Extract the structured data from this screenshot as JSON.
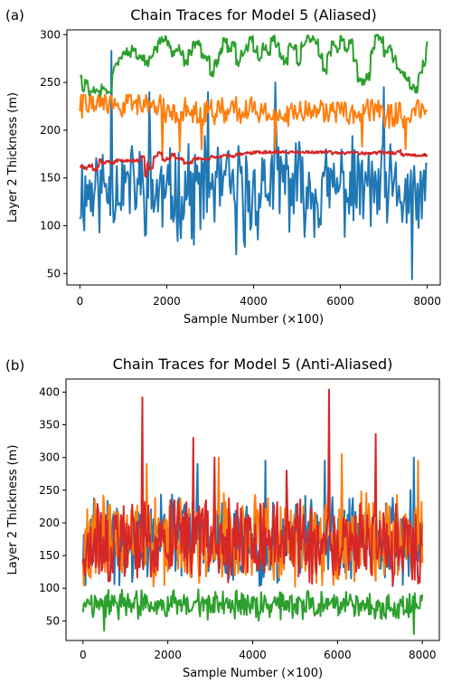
{
  "chart_data": [
    {
      "type": "line",
      "panel_label": "(a)",
      "title": "Chain Traces for Model 5 (Aliased)",
      "xlabel": "Sample Number (×100)",
      "ylabel": "Layer 2 Thickness (m)",
      "xlim": [
        -300,
        8300
      ],
      "ylim": [
        38,
        305
      ],
      "xticks": [
        0,
        2000,
        4000,
        6000,
        8000
      ],
      "xtick_labels": [
        "0",
        "2000",
        "4000",
        "6000",
        "8000"
      ],
      "yticks": [
        50,
        100,
        150,
        200,
        250,
        300
      ],
      "ytick_labels": [
        "50",
        "100",
        "150",
        "200",
        "250",
        "300"
      ],
      "grid": false,
      "series": [
        {
          "color": "#1f77b4",
          "kind": "noise",
          "seed": 11,
          "step": 25,
          "anchors": [
            [
              0,
              135
            ],
            [
              500,
              140
            ],
            [
              1000,
              145
            ],
            [
              1500,
              140
            ],
            [
              2000,
              130
            ],
            [
              2500,
              140
            ],
            [
              3000,
              140
            ],
            [
              3500,
              140
            ],
            [
              4000,
              130
            ],
            [
              4500,
              150
            ],
            [
              5000,
              140
            ],
            [
              5500,
              135
            ],
            [
              6000,
              140
            ],
            [
              6500,
              140
            ],
            [
              7000,
              135
            ],
            [
              7500,
              130
            ],
            [
              8000,
              130
            ]
          ],
          "noise": 40,
          "min": 44,
          "max": 283,
          "spikes": [
            [
              720,
              283
            ],
            [
              1600,
              240
            ],
            [
              2620,
              80
            ],
            [
              3600,
              70
            ],
            [
              3800,
              78
            ],
            [
              4500,
              250
            ],
            [
              7000,
              245
            ],
            [
              7640,
              44
            ],
            [
              2950,
              240
            ]
          ]
        },
        {
          "color": "#ff7f0e",
          "kind": "noise",
          "seed": 22,
          "step": 25,
          "anchors": [
            [
              0,
              228
            ],
            [
              1000,
              228
            ],
            [
              1700,
              228
            ],
            [
              2000,
              222
            ],
            [
              3000,
              220
            ],
            [
              4000,
              220
            ],
            [
              5000,
              218
            ],
            [
              6000,
              220
            ],
            [
              7000,
              218
            ],
            [
              8000,
              215
            ]
          ],
          "noise": 12,
          "min": 170,
          "max": 237,
          "spikes": [
            [
              1900,
              170
            ],
            [
              2300,
              178
            ],
            [
              2800,
              180
            ],
            [
              4500,
              180
            ],
            [
              6500,
              183
            ],
            [
              7500,
              180
            ]
          ]
        },
        {
          "color": "#2ca02c",
          "kind": "steps",
          "seed": 33,
          "points": [
            [
              0,
              258
            ],
            [
              50,
              242
            ],
            [
              120,
              250
            ],
            [
              200,
              238
            ],
            [
              300,
              242
            ],
            [
              400,
              238
            ],
            [
              500,
              246
            ],
            [
              600,
              240
            ],
            [
              700,
              244
            ],
            [
              750,
              262
            ],
            [
              800,
              270
            ],
            [
              900,
              278
            ],
            [
              1000,
              282
            ],
            [
              1100,
              280
            ],
            [
              1200,
              285
            ],
            [
              1300,
              278
            ],
            [
              1400,
              275
            ],
            [
              1500,
              270
            ],
            [
              1600,
              275
            ],
            [
              1700,
              285
            ],
            [
              1800,
              294
            ],
            [
              1900,
              296
            ],
            [
              2000,
              290
            ],
            [
              2100,
              280
            ],
            [
              2200,
              286
            ],
            [
              2300,
              280
            ],
            [
              2400,
              270
            ],
            [
              2500,
              282
            ],
            [
              2600,
              290
            ],
            [
              2700,
              292
            ],
            [
              2800,
              278
            ],
            [
              2900,
              275
            ],
            [
              3000,
              260
            ],
            [
              3100,
              270
            ],
            [
              3200,
              282
            ],
            [
              3300,
              293
            ],
            [
              3400,
              285
            ],
            [
              3500,
              290
            ],
            [
              3600,
              270
            ],
            [
              3700,
              280
            ],
            [
              3800,
              286
            ],
            [
              3900,
              295
            ],
            [
              4000,
              285
            ],
            [
              4100,
              275
            ],
            [
              4200,
              288
            ],
            [
              4300,
              282
            ],
            [
              4400,
              296
            ],
            [
              4500,
              290
            ],
            [
              4600,
              278
            ],
            [
              4700,
              272
            ],
            [
              4800,
              290
            ],
            [
              4900,
              285
            ],
            [
              5000,
              270
            ],
            [
              5100,
              288
            ],
            [
              5200,
              296
            ],
            [
              5300,
              295
            ],
            [
              5400,
              292
            ],
            [
              5500,
              278
            ],
            [
              5600,
              262
            ],
            [
              5700,
              280
            ],
            [
              5800,
              290
            ],
            [
              5900,
              285
            ],
            [
              6000,
              295
            ],
            [
              6100,
              285
            ],
            [
              6200,
              292
            ],
            [
              6300,
              272
            ],
            [
              6400,
              252
            ],
            [
              6500,
              250
            ],
            [
              6600,
              256
            ],
            [
              6700,
              283
            ],
            [
              6800,
              298
            ],
            [
              6900,
              295
            ],
            [
              7000,
              280
            ],
            [
              7100,
              285
            ],
            [
              7200,
              275
            ],
            [
              7300,
              262
            ],
            [
              7400,
              258
            ],
            [
              7500,
              252
            ],
            [
              7600,
              245
            ],
            [
              7700,
              242
            ],
            [
              7800,
              260
            ],
            [
              7900,
              270
            ],
            [
              7980,
              285
            ],
            [
              8000,
              293
            ]
          ],
          "jitter": 4
        },
        {
          "color": "#d62728",
          "kind": "steps",
          "seed": 44,
          "points": [
            [
              0,
              162
            ],
            [
              100,
              160
            ],
            [
              200,
              163
            ],
            [
              300,
              158
            ],
            [
              400,
              162
            ],
            [
              450,
              170
            ],
            [
              500,
              166
            ],
            [
              600,
              168
            ],
            [
              700,
              166
            ],
            [
              800,
              168
            ],
            [
              1000,
              168
            ],
            [
              1200,
              168
            ],
            [
              1400,
              172
            ],
            [
              1500,
              152
            ],
            [
              1550,
              165
            ],
            [
              1600,
              160
            ],
            [
              1700,
              172
            ],
            [
              1800,
              176
            ],
            [
              1900,
              168
            ],
            [
              2000,
              170
            ],
            [
              2100,
              174
            ],
            [
              2200,
              170
            ],
            [
              2400,
              166
            ],
            [
              2600,
              170
            ],
            [
              2800,
              170
            ],
            [
              3000,
              172
            ],
            [
              3300,
              173
            ],
            [
              3600,
              175
            ],
            [
              3800,
              176
            ],
            [
              4000,
              177
            ],
            [
              4500,
              177
            ],
            [
              5000,
              177
            ],
            [
              5500,
              177
            ],
            [
              5800,
              176
            ],
            [
              6000,
              176
            ],
            [
              6500,
              176
            ],
            [
              6900,
              178
            ],
            [
              7000,
              176
            ],
            [
              7200,
              176
            ],
            [
              7300,
              178
            ],
            [
              7400,
              174
            ],
            [
              7600,
              174
            ],
            [
              7800,
              174
            ],
            [
              8000,
              172
            ]
          ],
          "jitter": 1.5
        }
      ]
    },
    {
      "type": "line",
      "panel_label": "(b)",
      "title": "Chain Traces for Model 5 (Anti-Aliased)",
      "xlabel": "Sample Number (×100)",
      "ylabel": "Layer 2 Thickness (m)",
      "xlim": [
        -400,
        8400
      ],
      "ylim": [
        20,
        420
      ],
      "xticks": [
        0,
        2000,
        4000,
        6000,
        8000
      ],
      "xtick_labels": [
        "0",
        "2000",
        "4000",
        "6000",
        "8000"
      ],
      "yticks": [
        50,
        100,
        150,
        200,
        250,
        300,
        350,
        400
      ],
      "ytick_labels": [
        "50",
        "100",
        "150",
        "200",
        "250",
        "300",
        "350",
        "400"
      ],
      "grid": false,
      "series": [
        {
          "color": "#1f77b4",
          "kind": "noise",
          "seed": 55,
          "step": 20,
          "anchors": [
            [
              0,
              175
            ],
            [
              8000,
              175
            ]
          ],
          "noise": 55,
          "min": 95,
          "max": 300,
          "spikes": [
            [
              2700,
              290
            ],
            [
              4300,
              295
            ],
            [
              5700,
              295
            ],
            [
              7800,
              300
            ]
          ]
        },
        {
          "color": "#ff7f0e",
          "kind": "noise",
          "seed": 66,
          "step": 20,
          "anchors": [
            [
              0,
              175
            ],
            [
              8000,
              175
            ]
          ],
          "noise": 55,
          "min": 95,
          "max": 300,
          "spikes": [
            [
              1500,
              290
            ],
            [
              3200,
              300
            ],
            [
              6100,
              305
            ],
            [
              7900,
              295
            ]
          ]
        },
        {
          "color": "#2ca02c",
          "kind": "noise",
          "seed": 77,
          "step": 20,
          "anchors": [
            [
              0,
              75
            ],
            [
              8000,
              72
            ]
          ],
          "noise": 18,
          "min": 30,
          "max": 118,
          "spikes": [
            [
              500,
              35
            ],
            [
              7800,
              30
            ]
          ]
        },
        {
          "color": "#d62728",
          "kind": "noise",
          "seed": 88,
          "step": 20,
          "anchors": [
            [
              0,
              170
            ],
            [
              8000,
              170
            ]
          ],
          "noise": 50,
          "min": 95,
          "max": 300,
          "spikes": [
            [
              1400,
              392
            ],
            [
              2600,
              330
            ],
            [
              5800,
              404
            ],
            [
              6900,
              336
            ],
            [
              4800,
              280
            ],
            [
              3100,
              300
            ]
          ]
        }
      ]
    }
  ]
}
